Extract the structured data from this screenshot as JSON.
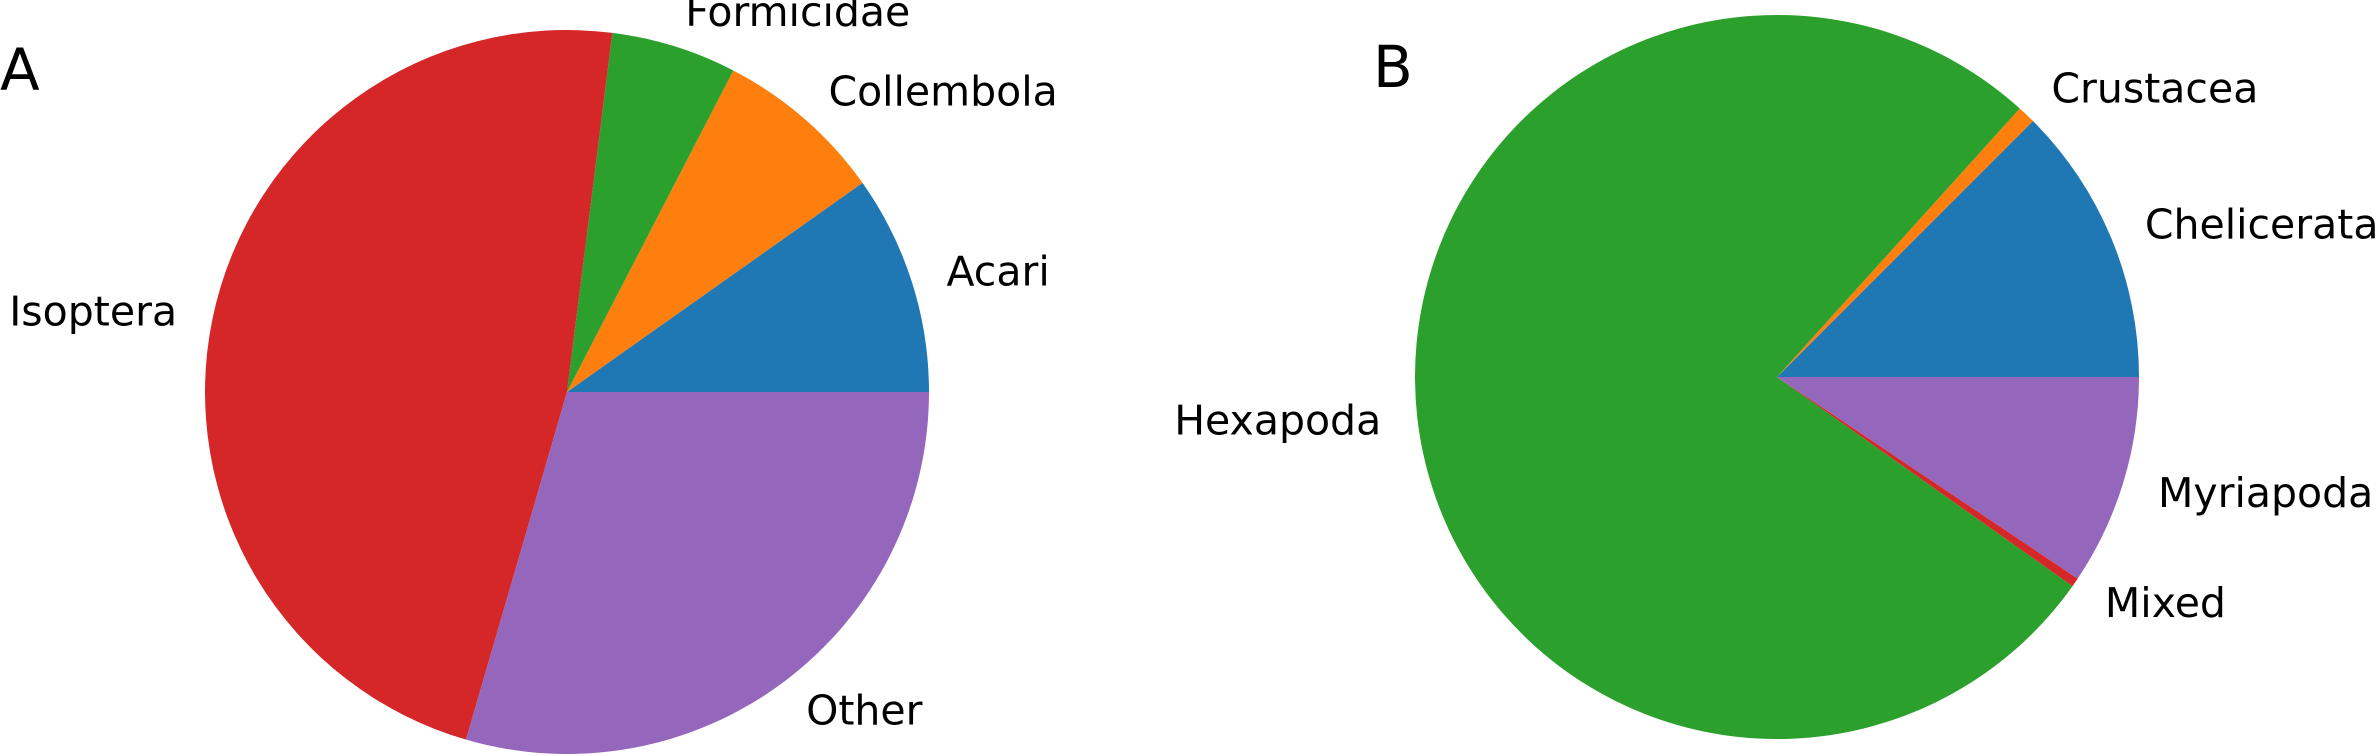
{
  "chart_data": [
    {
      "type": "pie",
      "panel_label": "A",
      "start_angle_deg": 0,
      "direction": "counterclockwise",
      "slices": [
        {
          "label": "Acari",
          "value": 9.8,
          "color": "#1f77b4"
        },
        {
          "label": "Collembola",
          "value": 7.6,
          "color": "#ff7f0e"
        },
        {
          "label": "Formicidae",
          "value": 5.6,
          "color": "#2ca02c"
        },
        {
          "label": "Isoptera",
          "value": 47.5,
          "color": "#d62728"
        },
        {
          "label": "Other",
          "value": 29.5,
          "color": "#9467bd"
        }
      ]
    },
    {
      "type": "pie",
      "panel_label": "B",
      "start_angle_deg": 0,
      "direction": "counterclockwise",
      "slices": [
        {
          "label": "Chelicerata",
          "value": 12.5,
          "color": "#1f77b4"
        },
        {
          "label": "Crustacea",
          "value": 0.8,
          "color": "#ff7f0e"
        },
        {
          "label": "Hexapoda",
          "value": 76.9,
          "color": "#2ca02c"
        },
        {
          "label": "Mixed",
          "value": 0.4,
          "color": "#d62728"
        },
        {
          "label": "Myriapoda",
          "value": 9.4,
          "color": "#9467bd"
        }
      ]
    }
  ]
}
